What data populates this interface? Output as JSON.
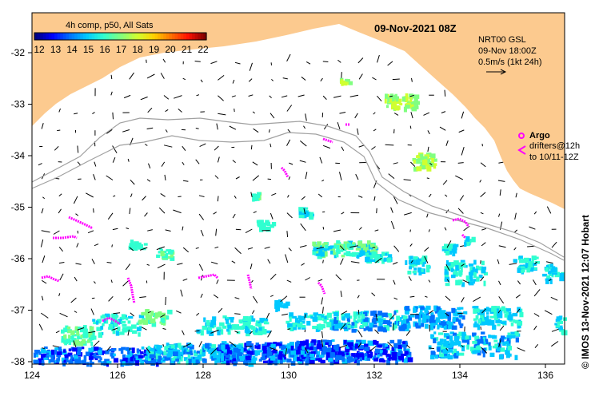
{
  "title": "09-Nov-2021 08Z",
  "legend": {
    "label": "4h comp, p50, All Sats",
    "ticks": [
      "12",
      "13",
      "14",
      "15",
      "16",
      "17",
      "18",
      "19",
      "20",
      "21",
      "22"
    ],
    "colors": [
      "#00007f",
      "#0000ff",
      "#0070ff",
      "#00c8ff",
      "#30ffd0",
      "#80ff80",
      "#d0ff30",
      "#ffd000",
      "#ff7000",
      "#ff1000",
      "#7f0000"
    ]
  },
  "current_info": {
    "line1": "NRT00 GSL",
    "line2": "09-Nov 18:00Z",
    "line3": "0.5m/s (1kt 24h)"
  },
  "argo": {
    "label": "Argo",
    "drifters_line1": "drifters@12h",
    "drifters_line2": "to 10/11-12Z",
    "color": "#ff00ff"
  },
  "credit": "© IMOS 13-Nov-2021 12:07 Hobart",
  "axes": {
    "x_ticks": [
      "124",
      "126",
      "128",
      "130",
      "132",
      "134",
      "136"
    ],
    "y_ticks": [
      "-32",
      "-33",
      "-34",
      "-35",
      "-36",
      "-37",
      "-38"
    ]
  },
  "colors": {
    "land": "#fcca8f",
    "ocean": "#ffffff",
    "isobath": "#a0a0a0"
  }
}
